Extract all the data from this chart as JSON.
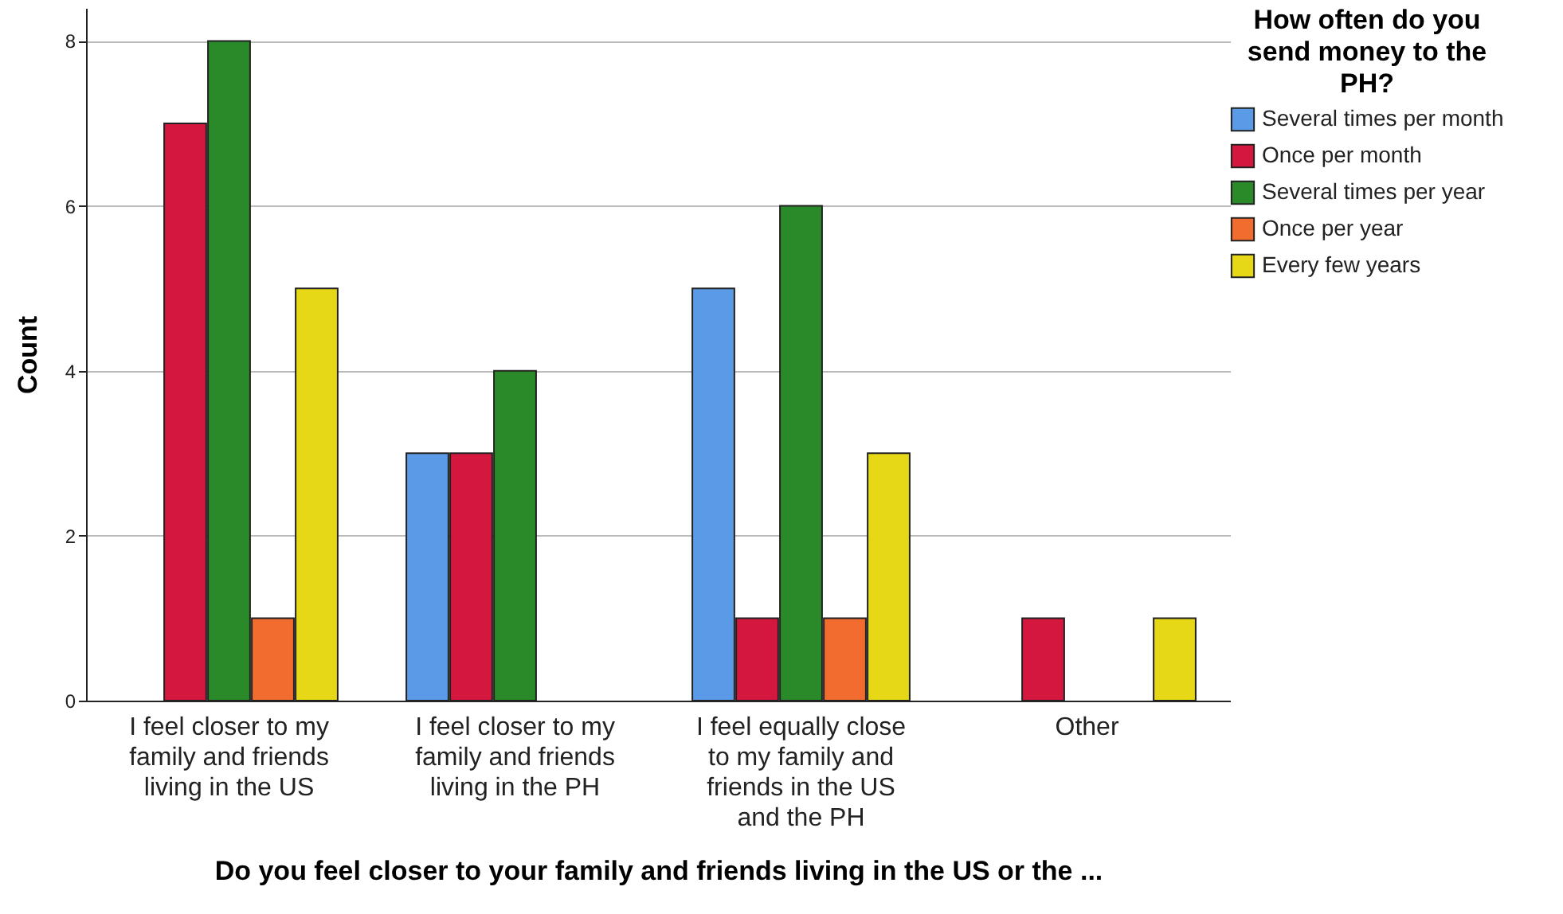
{
  "chart_data": {
    "type": "bar",
    "xlabel": "Do you feel closer to your family and friends living in the US or the ...",
    "ylabel": "Count",
    "legend_title": "How often do you send money to the PH?",
    "categories": [
      "I feel closer to my family and friends living in the US",
      "I feel closer to my family and friends living in the PH",
      "I feel equally close to my family and friends in the US and the PH",
      "Other"
    ],
    "series": [
      {
        "name": "Several times per month",
        "color": "#5b9ae6",
        "values": [
          null,
          3,
          5,
          null
        ]
      },
      {
        "name": "Once per month",
        "color": "#d4173e",
        "values": [
          7,
          3,
          1,
          1
        ]
      },
      {
        "name": "Several times per year",
        "color": "#2a8a2a",
        "values": [
          8,
          4,
          6,
          null
        ]
      },
      {
        "name": "Once per year",
        "color": "#f26b2f",
        "values": [
          1,
          null,
          1,
          null
        ]
      },
      {
        "name": "Every few years",
        "color": "#e6d816",
        "values": [
          5,
          null,
          3,
          1
        ]
      }
    ],
    "ylim": [
      0,
      8.4
    ],
    "yticks": [
      0,
      2,
      4,
      6,
      8
    ],
    "grid": "y",
    "legend": "top right"
  }
}
